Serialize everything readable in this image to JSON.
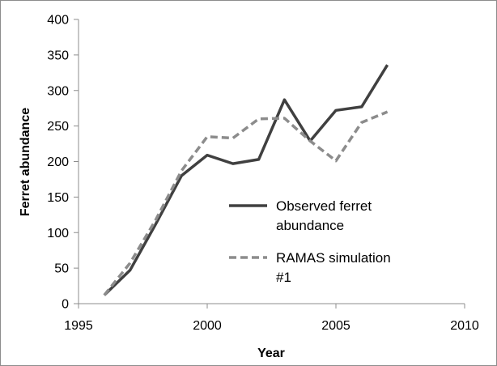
{
  "chart_data": {
    "type": "line",
    "title": "",
    "xlabel": "Year",
    "ylabel": "Ferret abundance",
    "xlim": [
      1995,
      2010
    ],
    "ylim": [
      0,
      400
    ],
    "xticks": [
      1995,
      2000,
      2005,
      2010
    ],
    "yticks": [
      0,
      50,
      100,
      150,
      200,
      250,
      300,
      350,
      400
    ],
    "grid": false,
    "legend_position": "right",
    "series": [
      {
        "name_lines": [
          "Observed ferret",
          "abundance"
        ],
        "style": "solid",
        "color": "#404040",
        "x": [
          1996,
          1997,
          1998,
          1999,
          2000,
          2001,
          2002,
          2003,
          2004,
          2005,
          2006,
          2007
        ],
        "y": [
          12,
          47,
          112,
          180,
          209,
          197,
          203,
          287,
          229,
          272,
          277,
          336
        ]
      },
      {
        "name_lines": [
          "RAMAS simulation",
          "#1"
        ],
        "style": "dashed",
        "color": "#8c8c8c",
        "x": [
          1996,
          1997,
          1998,
          1999,
          2000,
          2001,
          2002,
          2003,
          2004,
          2005,
          2006,
          2007
        ],
        "y": [
          12,
          57,
          118,
          187,
          235,
          233,
          260,
          261,
          229,
          201,
          255,
          270
        ]
      }
    ]
  }
}
